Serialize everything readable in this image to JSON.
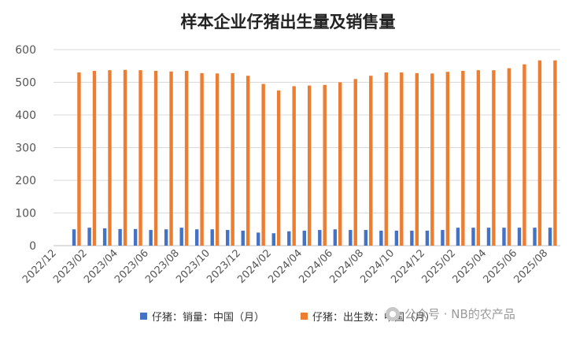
{
  "chart_data": {
    "type": "bar",
    "title": "样本企业仔猪出生量及销售量",
    "categories": [
      "2022/12",
      "2023/01",
      "2023/02",
      "2023/03",
      "2023/04",
      "2023/05",
      "2023/06",
      "2023/07",
      "2023/08",
      "2023/09",
      "2023/10",
      "2023/11",
      "2023/12",
      "2024/01",
      "2024/02",
      "2024/03",
      "2024/04",
      "2024/05",
      "2024/06",
      "2024/07",
      "2024/08",
      "2024/09",
      "2024/10",
      "2024/11",
      "2024/12",
      "2025/01",
      "2025/02",
      "2025/03",
      "2025/04",
      "2025/05",
      "2025/06",
      "2025/07",
      "2025/08"
    ],
    "x_tick_labels": [
      "2022/12",
      "2023/02",
      "2023/04",
      "2023/06",
      "2023/08",
      "2023/10",
      "2023/12",
      "2024/02",
      "2024/04",
      "2024/06",
      "2024/08",
      "2024/10",
      "2024/12",
      "2025/02",
      "2025/04",
      "2025/06",
      "2025/08"
    ],
    "series": [
      {
        "name": "仔猪：销量：中国（月）",
        "color": "#4472C4",
        "values": [
          null,
          50,
          55,
          53,
          51,
          51,
          48,
          50,
          55,
          50,
          50,
          48,
          46,
          40,
          38,
          44,
          46,
          48,
          50,
          48,
          48,
          46,
          46,
          46,
          46,
          48,
          55,
          55,
          55,
          55,
          55,
          55,
          55
        ]
      },
      {
        "name": "仔猪：出生数：中国（月）",
        "color": "#ED7D31",
        "values": [
          null,
          530,
          535,
          537,
          538,
          537,
          535,
          533,
          535,
          528,
          527,
          528,
          520,
          495,
          475,
          488,
          490,
          492,
          500,
          510,
          520,
          530,
          530,
          528,
          527,
          532,
          535,
          537,
          537,
          543,
          555,
          567,
          567
        ]
      }
    ],
    "ylim": [
      0,
      600
    ],
    "y_ticks": [
      0,
      100,
      200,
      300,
      400,
      500,
      600
    ],
    "grid": true,
    "legend_position": "bottom"
  },
  "watermark": {
    "text": "公众号 · NB的农产品",
    "icon": "wechat-icon"
  }
}
